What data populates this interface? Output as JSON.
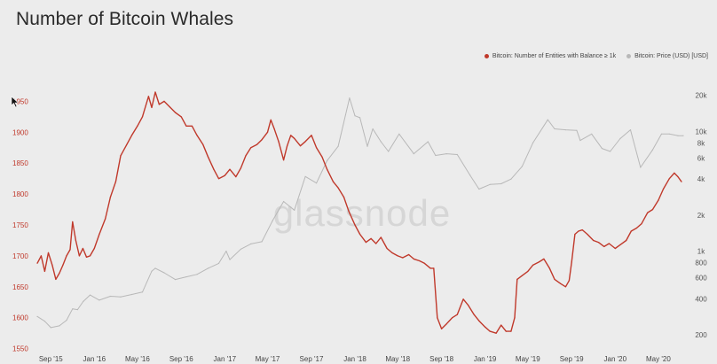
{
  "title": "Number of Bitcoin Whales",
  "watermark": "glassnode",
  "legend": [
    {
      "label": "Bitcoin: Number of Entities with Balance ≥ 1k",
      "color": "#c0392b"
    },
    {
      "label": "Bitcoin: Price (USD) [USD]",
      "color": "#b8b8b8"
    }
  ],
  "chart_data": {
    "type": "line",
    "title": "Number of Bitcoin Whales",
    "x_tick_labels": [
      "Sep '15",
      "Jan '16",
      "May '16",
      "Sep '16",
      "Jan '17",
      "May '17",
      "Sep '17",
      "Jan '18",
      "May '18",
      "Sep '18",
      "Jan '19",
      "May '19",
      "Sep '19",
      "Jan '20",
      "May '20"
    ],
    "x_range": [
      "2015-07-20",
      "2020-07-15"
    ],
    "y_left": {
      "ticks": [
        1550,
        1600,
        1650,
        1700,
        1750,
        1800,
        1850,
        1900,
        1950
      ],
      "range": [
        1548,
        1985
      ],
      "color": "#c0392b"
    },
    "y_right": {
      "scale": "log",
      "ticks": [
        200,
        400,
        600,
        800,
        1000,
        2000,
        4000,
        6000,
        8000,
        10000,
        20000
      ],
      "tick_labels": [
        "200",
        "400",
        "600",
        "800",
        "1k",
        "2k",
        "4k",
        "6k",
        "8k",
        "10k",
        "20k"
      ],
      "range": [
        150,
        27000
      ]
    },
    "series": [
      {
        "name": "Bitcoin: Number of Entities with Balance ≥ 1k",
        "axis": "left",
        "color": "#c0392b",
        "points": [
          [
            "2015-07-25",
            1688
          ],
          [
            "2015-08-05",
            1700
          ],
          [
            "2015-08-15",
            1675
          ],
          [
            "2015-08-25",
            1705
          ],
          [
            "2015-09-05",
            1685
          ],
          [
            "2015-09-15",
            1662
          ],
          [
            "2015-09-25",
            1672
          ],
          [
            "2015-10-05",
            1685
          ],
          [
            "2015-10-15",
            1700
          ],
          [
            "2015-10-25",
            1710
          ],
          [
            "2015-11-01",
            1755
          ],
          [
            "2015-11-10",
            1725
          ],
          [
            "2015-11-20",
            1700
          ],
          [
            "2015-11-30",
            1712
          ],
          [
            "2015-12-10",
            1698
          ],
          [
            "2015-12-20",
            1700
          ],
          [
            "2016-01-01",
            1712
          ],
          [
            "2016-01-15",
            1735
          ],
          [
            "2016-02-01",
            1760
          ],
          [
            "2016-02-15",
            1795
          ],
          [
            "2016-03-01",
            1820
          ],
          [
            "2016-03-15",
            1862
          ],
          [
            "2016-04-01",
            1880
          ],
          [
            "2016-04-15",
            1895
          ],
          [
            "2016-05-01",
            1910
          ],
          [
            "2016-05-15",
            1925
          ],
          [
            "2016-06-01",
            1958
          ],
          [
            "2016-06-10",
            1940
          ],
          [
            "2016-06-20",
            1965
          ],
          [
            "2016-07-01",
            1945
          ],
          [
            "2016-07-15",
            1950
          ],
          [
            "2016-08-01",
            1940
          ],
          [
            "2016-08-15",
            1932
          ],
          [
            "2016-09-01",
            1925
          ],
          [
            "2016-09-15",
            1910
          ],
          [
            "2016-10-01",
            1910
          ],
          [
            "2016-10-15",
            1895
          ],
          [
            "2016-11-01",
            1880
          ],
          [
            "2016-11-15",
            1860
          ],
          [
            "2016-12-01",
            1840
          ],
          [
            "2016-12-15",
            1825
          ],
          [
            "2017-01-01",
            1830
          ],
          [
            "2017-01-15",
            1840
          ],
          [
            "2017-02-01",
            1828
          ],
          [
            "2017-02-15",
            1842
          ],
          [
            "2017-03-01",
            1862
          ],
          [
            "2017-03-15",
            1875
          ],
          [
            "2017-04-01",
            1880
          ],
          [
            "2017-04-15",
            1888
          ],
          [
            "2017-05-01",
            1900
          ],
          [
            "2017-05-10",
            1920
          ],
          [
            "2017-05-20",
            1905
          ],
          [
            "2017-06-01",
            1885
          ],
          [
            "2017-06-15",
            1855
          ],
          [
            "2017-06-25",
            1878
          ],
          [
            "2017-07-05",
            1895
          ],
          [
            "2017-07-15",
            1890
          ],
          [
            "2017-08-01",
            1878
          ],
          [
            "2017-08-15",
            1885
          ],
          [
            "2017-09-01",
            1895
          ],
          [
            "2017-09-15",
            1875
          ],
          [
            "2017-10-01",
            1860
          ],
          [
            "2017-10-15",
            1840
          ],
          [
            "2017-11-01",
            1820
          ],
          [
            "2017-11-15",
            1810
          ],
          [
            "2017-12-01",
            1795
          ],
          [
            "2017-12-15",
            1772
          ],
          [
            "2018-01-01",
            1750
          ],
          [
            "2018-01-15",
            1735
          ],
          [
            "2018-02-01",
            1722
          ],
          [
            "2018-02-15",
            1728
          ],
          [
            "2018-03-01",
            1720
          ],
          [
            "2018-03-15",
            1730
          ],
          [
            "2018-04-01",
            1712
          ],
          [
            "2018-04-15",
            1705
          ],
          [
            "2018-05-01",
            1700
          ],
          [
            "2018-05-15",
            1697
          ],
          [
            "2018-06-01",
            1702
          ],
          [
            "2018-06-15",
            1695
          ],
          [
            "2018-07-01",
            1692
          ],
          [
            "2018-07-15",
            1688
          ],
          [
            "2018-08-01",
            1680
          ],
          [
            "2018-08-10",
            1680
          ],
          [
            "2018-08-20",
            1600
          ],
          [
            "2018-09-01",
            1582
          ],
          [
            "2018-09-15",
            1590
          ],
          [
            "2018-10-01",
            1600
          ],
          [
            "2018-10-15",
            1605
          ],
          [
            "2018-11-01",
            1630
          ],
          [
            "2018-11-15",
            1620
          ],
          [
            "2018-12-01",
            1605
          ],
          [
            "2018-12-15",
            1595
          ],
          [
            "2019-01-01",
            1585
          ],
          [
            "2019-01-15",
            1578
          ],
          [
            "2019-02-01",
            1575
          ],
          [
            "2019-02-15",
            1588
          ],
          [
            "2019-03-01",
            1578
          ],
          [
            "2019-03-15",
            1578
          ],
          [
            "2019-03-25",
            1600
          ],
          [
            "2019-04-01",
            1662
          ],
          [
            "2019-04-15",
            1668
          ],
          [
            "2019-05-01",
            1675
          ],
          [
            "2019-05-15",
            1685
          ],
          [
            "2019-06-01",
            1690
          ],
          [
            "2019-06-15",
            1695
          ],
          [
            "2019-07-01",
            1680
          ],
          [
            "2019-07-15",
            1662
          ],
          [
            "2019-08-01",
            1655
          ],
          [
            "2019-08-15",
            1650
          ],
          [
            "2019-08-25",
            1660
          ],
          [
            "2019-09-01",
            1690
          ],
          [
            "2019-09-10",
            1735
          ],
          [
            "2019-09-20",
            1740
          ],
          [
            "2019-10-01",
            1742
          ],
          [
            "2019-10-15",
            1735
          ],
          [
            "2019-11-01",
            1725
          ],
          [
            "2019-11-15",
            1722
          ],
          [
            "2019-12-01",
            1715
          ],
          [
            "2019-12-15",
            1720
          ],
          [
            "2020-01-01",
            1712
          ],
          [
            "2020-01-15",
            1718
          ],
          [
            "2020-02-01",
            1725
          ],
          [
            "2020-02-15",
            1740
          ],
          [
            "2020-03-01",
            1745
          ],
          [
            "2020-03-15",
            1752
          ],
          [
            "2020-04-01",
            1770
          ],
          [
            "2020-04-15",
            1775
          ],
          [
            "2020-05-01",
            1790
          ],
          [
            "2020-05-15",
            1808
          ],
          [
            "2020-06-01",
            1825
          ],
          [
            "2020-06-15",
            1834
          ],
          [
            "2020-06-25",
            1828
          ],
          [
            "2020-07-05",
            1820
          ]
        ]
      },
      {
        "name": "Bitcoin: Price (USD) [USD]",
        "axis": "right",
        "color": "#b8b8b8",
        "points": [
          [
            "2015-07-25",
            285
          ],
          [
            "2015-08-15",
            260
          ],
          [
            "2015-09-01",
            230
          ],
          [
            "2015-09-25",
            238
          ],
          [
            "2015-10-15",
            265
          ],
          [
            "2015-11-01",
            330
          ],
          [
            "2015-11-15",
            325
          ],
          [
            "2015-12-01",
            380
          ],
          [
            "2015-12-20",
            430
          ],
          [
            "2016-01-15",
            390
          ],
          [
            "2016-02-15",
            420
          ],
          [
            "2016-03-15",
            415
          ],
          [
            "2016-04-15",
            435
          ],
          [
            "2016-05-15",
            455
          ],
          [
            "2016-06-10",
            680
          ],
          [
            "2016-06-20",
            720
          ],
          [
            "2016-07-15",
            660
          ],
          [
            "2016-08-15",
            580
          ],
          [
            "2016-09-15",
            610
          ],
          [
            "2016-10-15",
            640
          ],
          [
            "2016-11-15",
            720
          ],
          [
            "2016-12-15",
            790
          ],
          [
            "2017-01-05",
            1000
          ],
          [
            "2017-01-15",
            850
          ],
          [
            "2017-02-15",
            1040
          ],
          [
            "2017-03-15",
            1150
          ],
          [
            "2017-04-15",
            1200
          ],
          [
            "2017-05-15",
            1800
          ],
          [
            "2017-06-15",
            2600
          ],
          [
            "2017-07-15",
            2200
          ],
          [
            "2017-08-15",
            4200
          ],
          [
            "2017-09-15",
            3700
          ],
          [
            "2017-10-15",
            5700
          ],
          [
            "2017-11-15",
            7500
          ],
          [
            "2017-12-17",
            19000
          ],
          [
            "2018-01-01",
            13500
          ],
          [
            "2018-01-15",
            13000
          ],
          [
            "2018-02-05",
            7500
          ],
          [
            "2018-02-20",
            10500
          ],
          [
            "2018-03-15",
            8200
          ],
          [
            "2018-04-05",
            6800
          ],
          [
            "2018-05-05",
            9500
          ],
          [
            "2018-06-15",
            6500
          ],
          [
            "2018-07-25",
            8200
          ],
          [
            "2018-08-15",
            6300
          ],
          [
            "2018-09-15",
            6500
          ],
          [
            "2018-10-15",
            6400
          ],
          [
            "2018-11-20",
            4300
          ],
          [
            "2018-12-15",
            3300
          ],
          [
            "2019-01-15",
            3600
          ],
          [
            "2019-02-15",
            3650
          ],
          [
            "2019-03-15",
            4000
          ],
          [
            "2019-04-15",
            5100
          ],
          [
            "2019-05-15",
            8000
          ],
          [
            "2019-06-26",
            12500
          ],
          [
            "2019-07-15",
            10500
          ],
          [
            "2019-08-15",
            10300
          ],
          [
            "2019-09-15",
            10200
          ],
          [
            "2019-09-25",
            8400
          ],
          [
            "2019-10-27",
            9500
          ],
          [
            "2019-11-25",
            7200
          ],
          [
            "2019-12-18",
            6800
          ],
          [
            "2020-01-15",
            8700
          ],
          [
            "2020-02-13",
            10300
          ],
          [
            "2020-03-12",
            5000
          ],
          [
            "2020-04-15",
            7000
          ],
          [
            "2020-05-10",
            9500
          ],
          [
            "2020-06-01",
            9500
          ],
          [
            "2020-06-25",
            9200
          ],
          [
            "2020-07-10",
            9200
          ]
        ]
      }
    ]
  }
}
